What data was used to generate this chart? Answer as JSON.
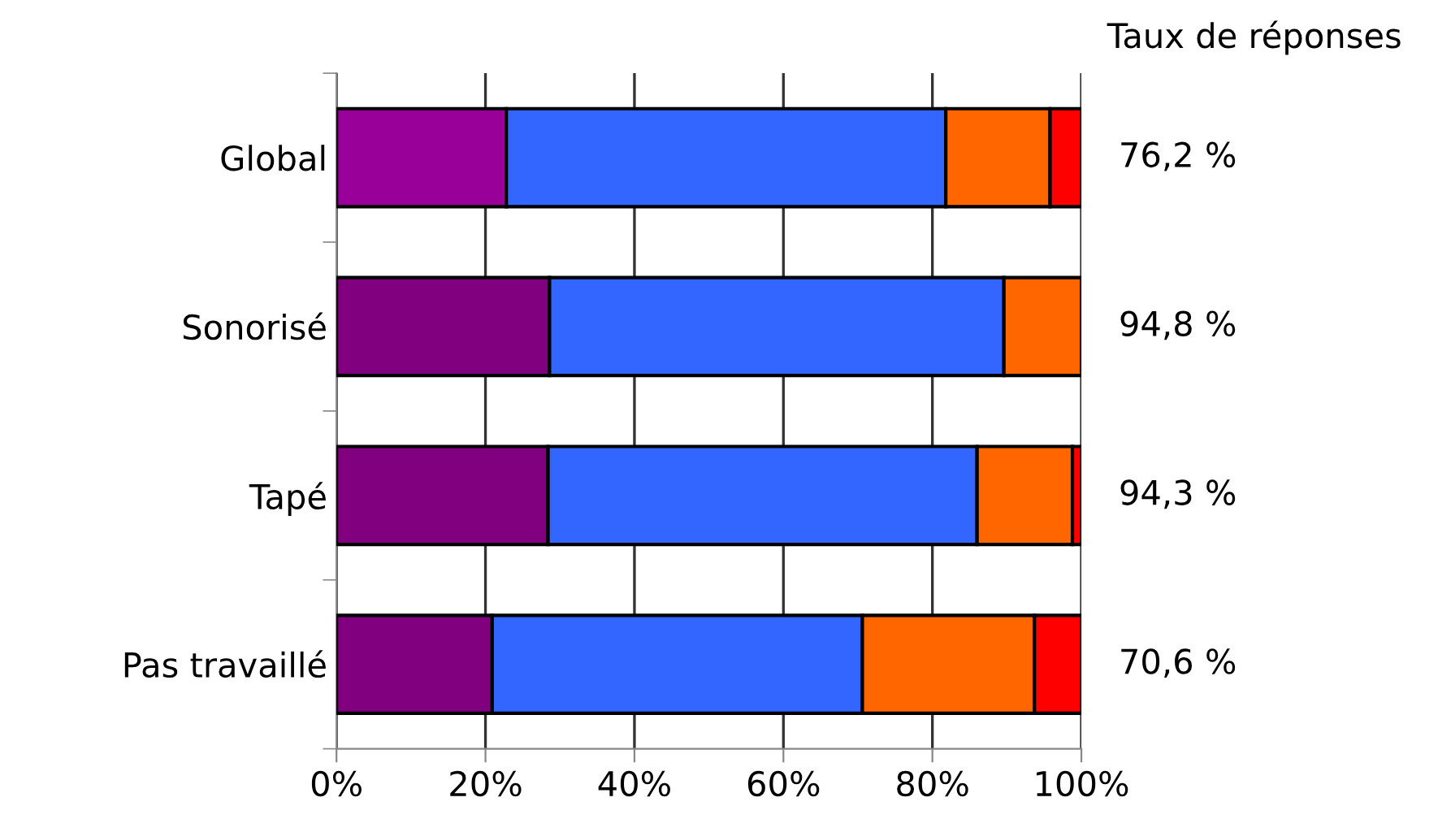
{
  "chart_data": {
    "type": "bar",
    "orientation": "horizontal",
    "stacked": true,
    "categories": [
      "Global",
      "Sonorisé",
      "Tapé",
      "Pas travaillé"
    ],
    "series": [
      {
        "color": "#800080",
        "colors": [
          "#990099",
          "#800080",
          "#800080",
          "#800080"
        ],
        "values": [
          22.8,
          28.6,
          28.4,
          20.9
        ]
      },
      {
        "color": "#3366ff",
        "values": [
          59.0,
          61.0,
          57.6,
          49.7
        ]
      },
      {
        "color": "#ff6600",
        "values": [
          14.0,
          10.4,
          12.8,
          23.1
        ]
      },
      {
        "color": "#ff0000",
        "values": [
          4.2,
          0,
          1.2,
          6.3
        ]
      }
    ],
    "xlim": [
      0,
      100
    ],
    "xticks": [
      {
        "value": 0,
        "label": "0%"
      },
      {
        "value": 20,
        "label": "20%"
      },
      {
        "value": 40,
        "label": "40%"
      },
      {
        "value": 60,
        "label": "60%"
      },
      {
        "value": 80,
        "label": "80%"
      },
      {
        "value": 100,
        "label": "100%"
      }
    ],
    "grid": "x",
    "annotations": [
      "Taux de réponses",
      "76,2 %",
      "94,8 %",
      "94,3 %",
      "70,6 %"
    ]
  }
}
